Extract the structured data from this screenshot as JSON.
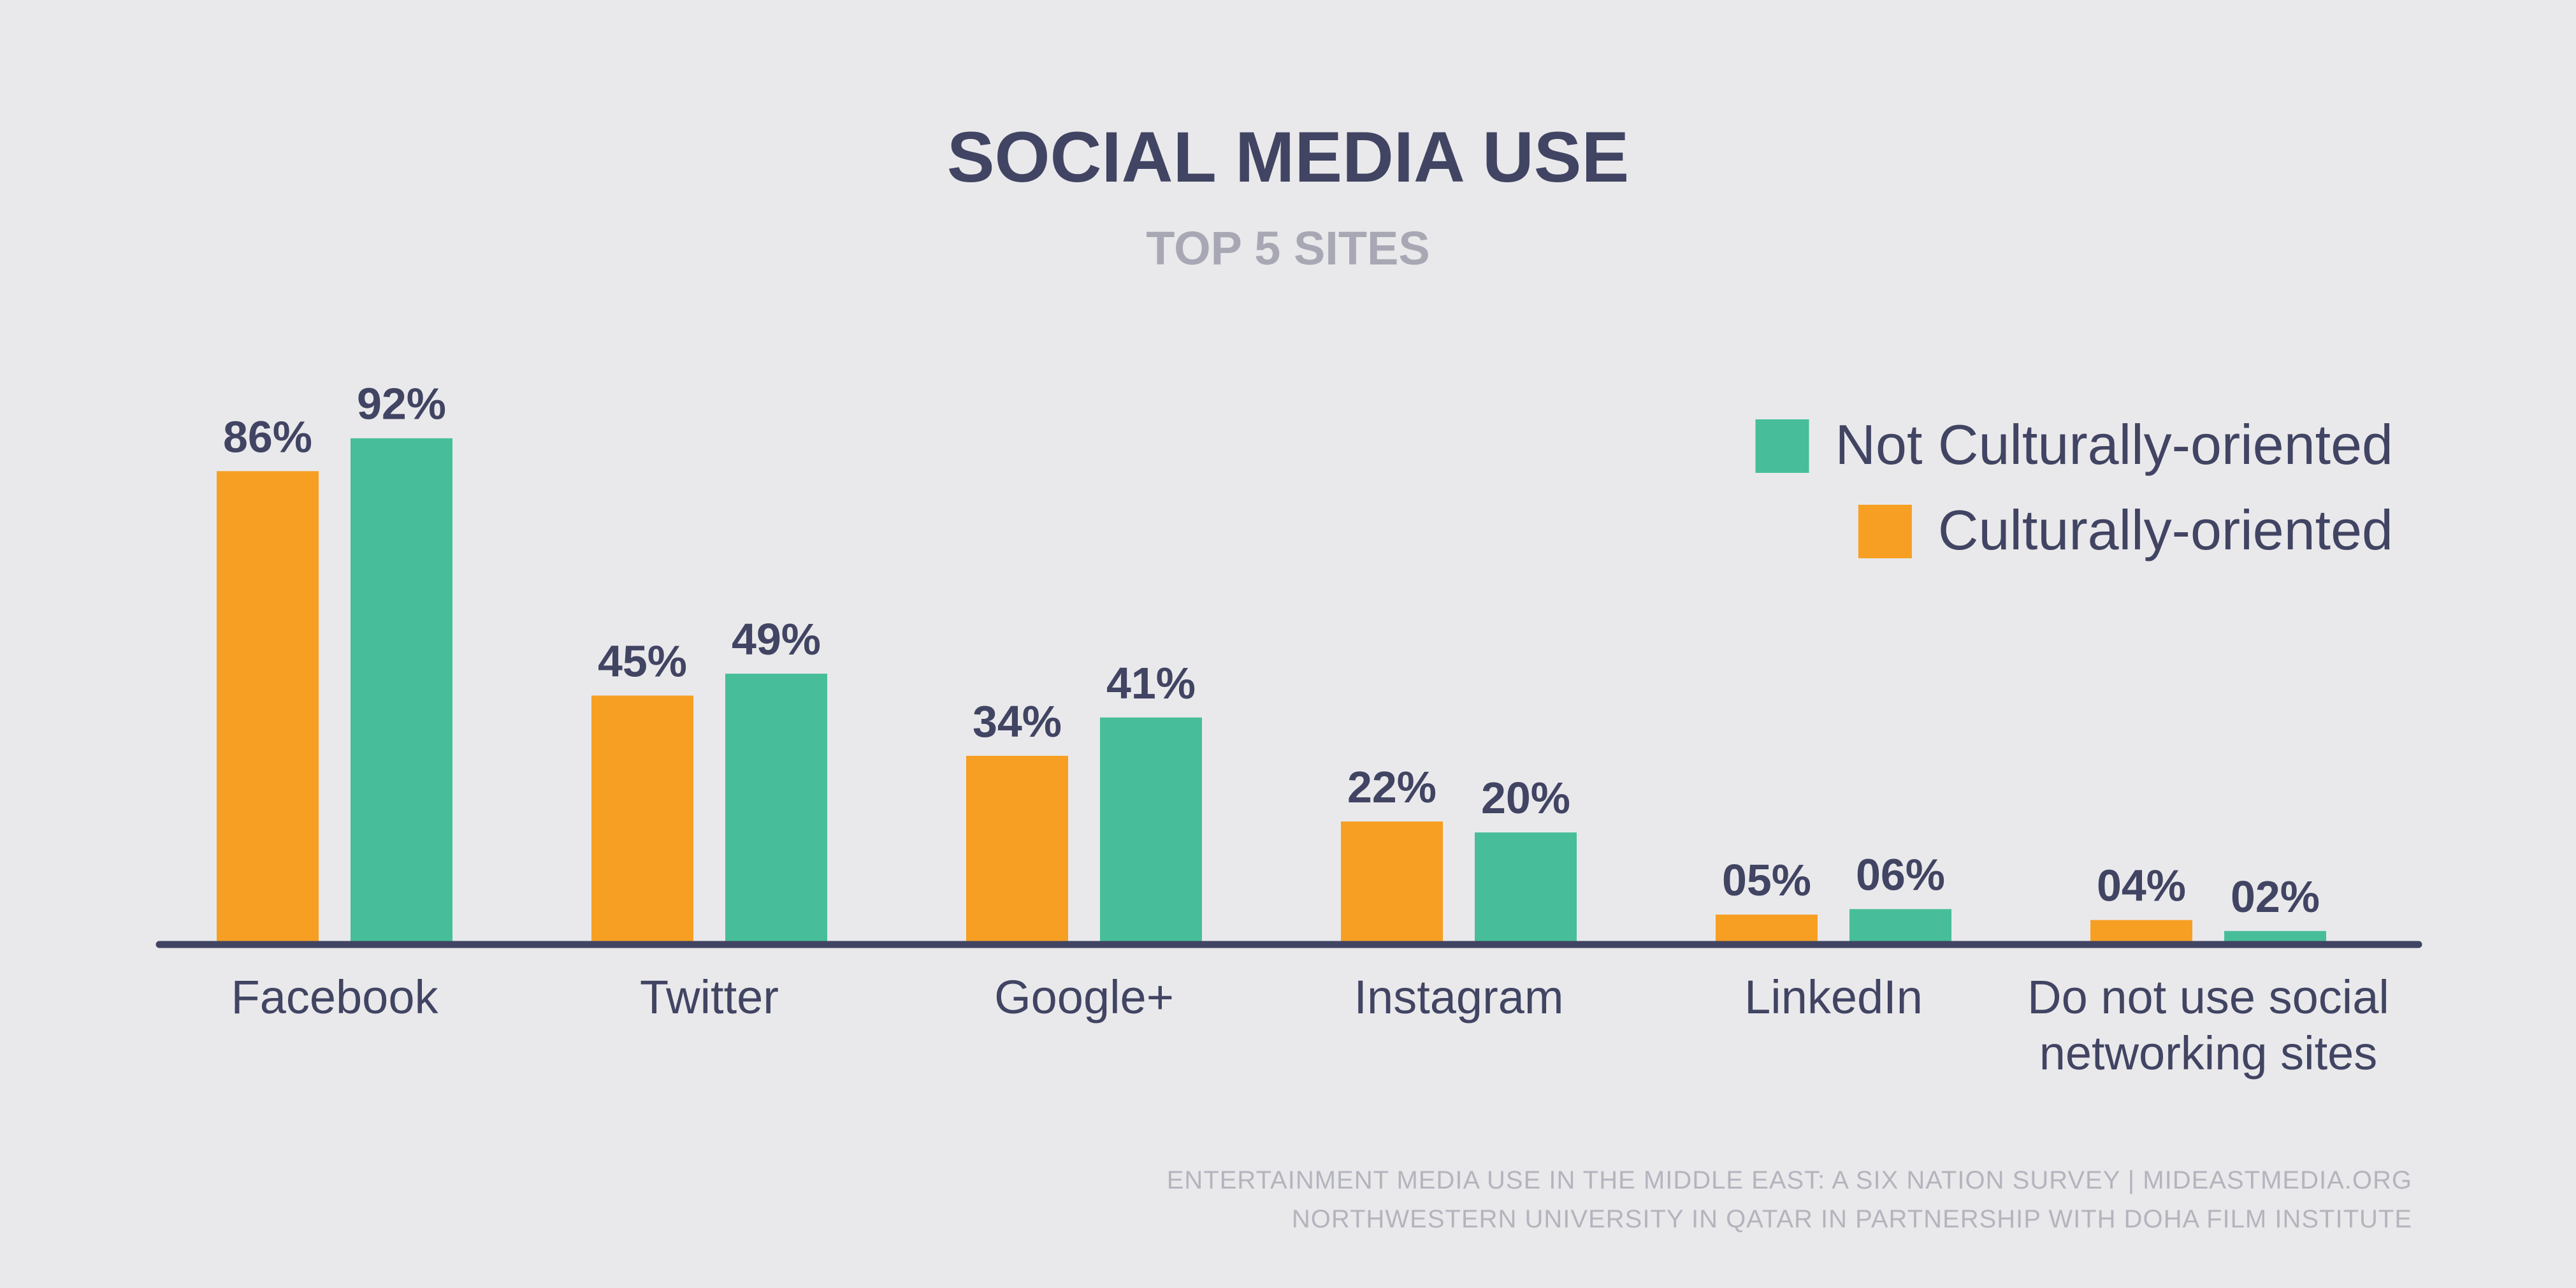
{
  "chart_data": {
    "type": "bar",
    "title": "SOCIAL MEDIA USE",
    "subtitle": "TOP 5 SITES",
    "categories": [
      [
        "Facebook"
      ],
      [
        "Twitter"
      ],
      [
        "Google+"
      ],
      [
        "Instagram"
      ],
      [
        "LinkedIn"
      ],
      [
        "Do not use social",
        "networking sites"
      ]
    ],
    "series": [
      {
        "name": "Culturally-oriented",
        "color": "#f79f22",
        "values": [
          86,
          45,
          34,
          22,
          5,
          4
        ],
        "labels": [
          "86%",
          "45%",
          "34%",
          "22%",
          "05%",
          "04%"
        ]
      },
      {
        "name": "Not Culturally-oriented",
        "color": "#47be99",
        "values": [
          92,
          49,
          41,
          20,
          6,
          2
        ],
        "labels": [
          "92%",
          "49%",
          "41%",
          "20%",
          "06%",
          "02%"
        ]
      }
    ],
    "legend_order": [
      "Not Culturally-oriented",
      "Culturally-oriented"
    ],
    "legend_position": "top-right",
    "ylim": [
      0,
      100
    ],
    "grid": false,
    "axis_color": "#414462"
  },
  "footer": {
    "line1": "ENTERTAINMENT MEDIA USE IN THE MIDDLE EAST: A SIX NATION SURVEY | MIDEASTMEDIA.ORG",
    "line2": "NORTHWESTERN UNIVERSITY IN QATAR IN PARTNERSHIP WITH DOHA FILM INSTITUTE"
  }
}
